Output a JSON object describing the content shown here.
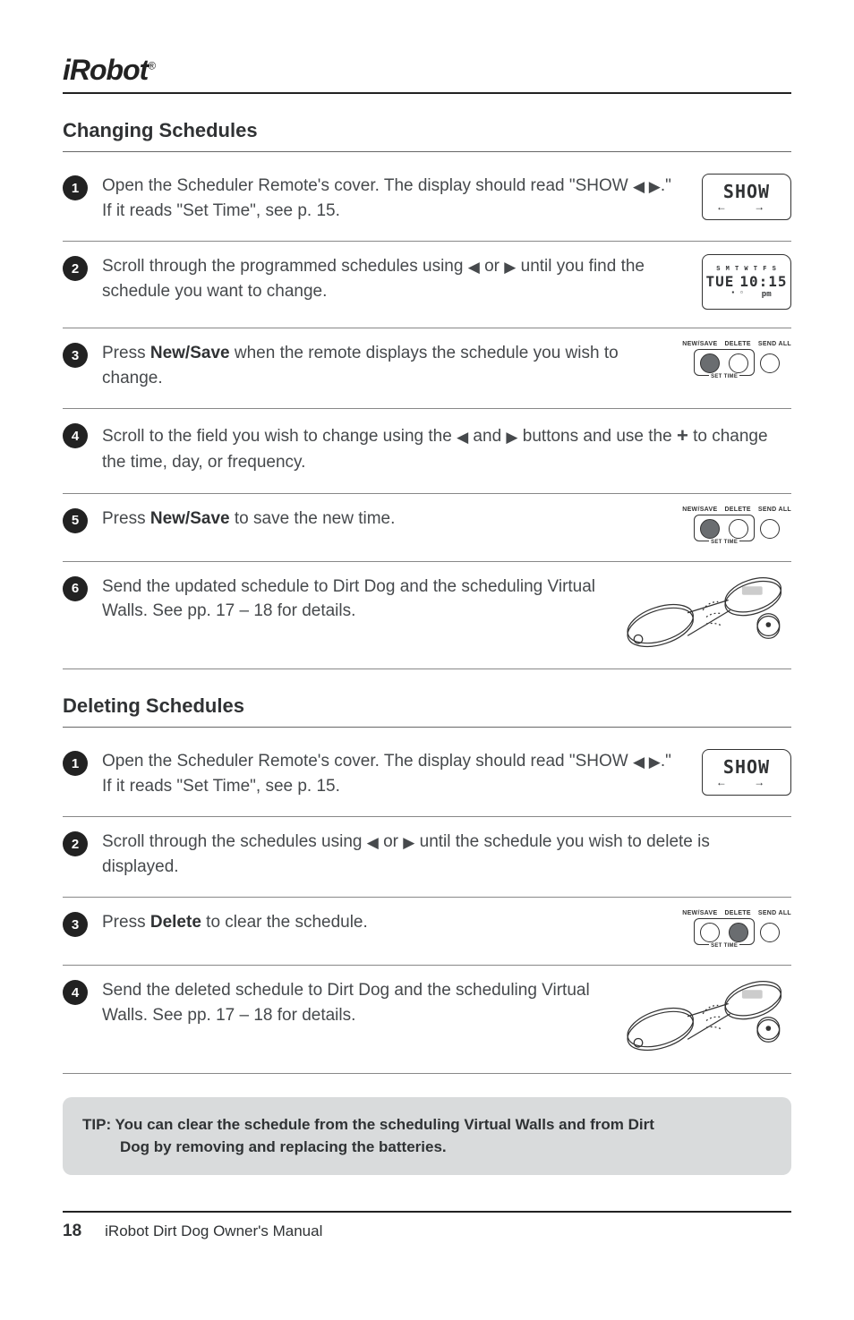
{
  "logo": {
    "text": "iRobot",
    "reg": "®"
  },
  "sections": {
    "changing": {
      "title": "Changing Schedules",
      "steps": [
        {
          "n": "1",
          "html": "Open the Scheduler Remote's cover. The display should read \"SHOW <span class='arricon'>◀ ▶</span>.\" If it reads \"Set Time\", see p. 15.",
          "graphic": "lcd_show"
        },
        {
          "n": "2",
          "html": "Scroll through the programmed schedules using <span class='arricon'>◀</span> or <span class='arricon'>▶</span> until you find the schedule you want to change.",
          "graphic": "lcd_tue"
        },
        {
          "n": "3",
          "html": "Press <strong>New/Save</strong> when the remote displays the schedule you wish to change.",
          "graphic": "buttons_left"
        },
        {
          "n": "4",
          "html": "Scroll to the field you wish to change using the <span class='arricon'>◀</span> and <span class='arricon'>▶</span> buttons and use the <span class='plusicon'>+</span> to change the time, day, or frequency.",
          "graphic": "none"
        },
        {
          "n": "5",
          "html": "Press <strong>New/Save</strong> to save the new time.",
          "graphic": "buttons_left"
        },
        {
          "n": "6",
          "html": "Send the updated schedule to Dirt Dog and the scheduling Virtual Walls. See pp. 17 – 18 for details.",
          "graphic": "remote"
        }
      ]
    },
    "deleting": {
      "title": "Deleting Schedules",
      "steps": [
        {
          "n": "1",
          "html": "Open the Scheduler Remote's cover. The display should read \"SHOW <span class='arricon'>◀ ▶</span>.\" If it reads \"Set Time\", see p. 15.",
          "graphic": "lcd_show"
        },
        {
          "n": "2",
          "html": "Scroll through the schedules using <span class='arricon'>◀</span> or <span class='arricon'>▶</span> until the schedule you wish to delete is displayed.",
          "graphic": "none"
        },
        {
          "n": "3",
          "html": "Press <strong>Delete</strong> to clear the schedule.",
          "graphic": "buttons_mid"
        },
        {
          "n": "4",
          "html": "Send the deleted schedule to Dirt Dog and the scheduling Virtual Walls. See pp. 17 – 18 for details.",
          "graphic": "remote"
        }
      ]
    }
  },
  "tip": {
    "lead": "TIP: You can clear the schedule from the scheduling Virtual Walls and from Dirt",
    "cont": "Dog by removing and replacing the batteries."
  },
  "footer": {
    "page": "18",
    "title": "iRobot Dirt Dog Owner's Manual"
  },
  "graphics": {
    "lcd_show": {
      "line1": "SHOW",
      "line2": "← →"
    },
    "lcd_tue": {
      "days": "S M T W T F S",
      "day": "TUE",
      "time": "10:15",
      "pm": "pm"
    },
    "button_labels": {
      "a": "NEW/SAVE",
      "b": "DELETE",
      "c": "SEND ALL",
      "settime": "SET TIME"
    }
  },
  "colors": {
    "text": "#46494c",
    "heading": "#303234",
    "rule": "#222222",
    "tip_bg": "#d9dbdc",
    "btn_dark": "#6a6d70"
  }
}
